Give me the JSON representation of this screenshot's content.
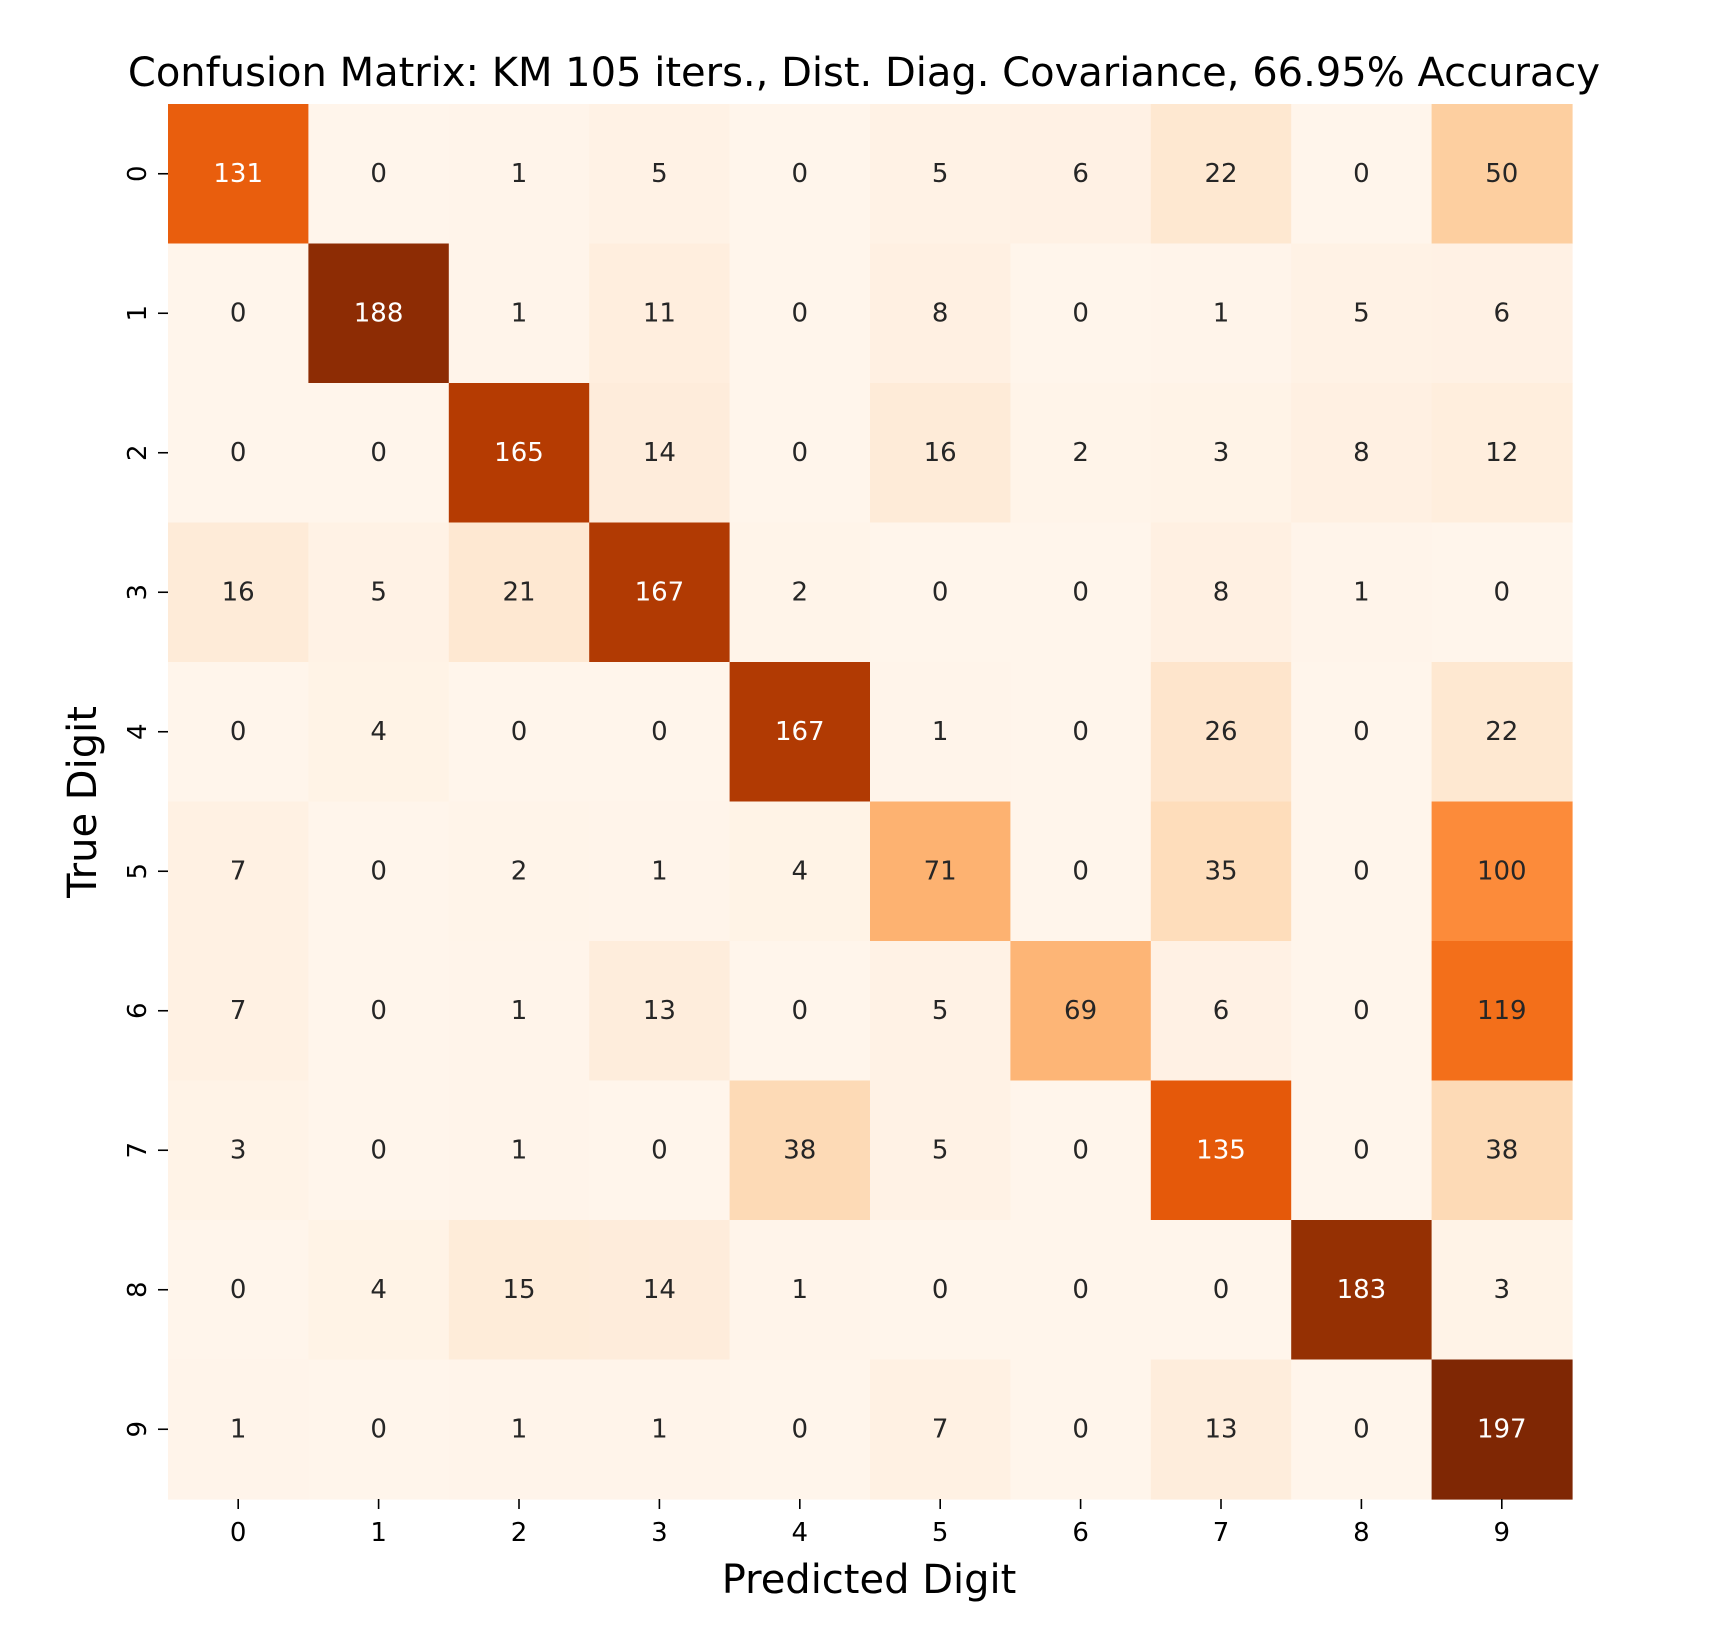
{
  "chart_data": {
    "type": "heatmap",
    "title": "Confusion Matrix: KM 105 iters., Dist. Diag. Covariance, 66.95% Accuracy",
    "xlabel": "Predicted Digit",
    "ylabel": "True Digit",
    "x_categories": [
      "0",
      "1",
      "2",
      "3",
      "4",
      "5",
      "6",
      "7",
      "8",
      "9"
    ],
    "y_categories": [
      "0",
      "1",
      "2",
      "3",
      "4",
      "5",
      "6",
      "7",
      "8",
      "9"
    ],
    "values": [
      [
        131,
        0,
        1,
        5,
        0,
        5,
        6,
        22,
        0,
        50
      ],
      [
        0,
        188,
        1,
        11,
        0,
        8,
        0,
        1,
        5,
        6
      ],
      [
        0,
        0,
        165,
        14,
        0,
        16,
        2,
        3,
        8,
        12
      ],
      [
        16,
        5,
        21,
        167,
        2,
        0,
        0,
        8,
        1,
        0
      ],
      [
        0,
        4,
        0,
        0,
        167,
        1,
        0,
        26,
        0,
        22
      ],
      [
        7,
        0,
        2,
        1,
        4,
        71,
        0,
        35,
        0,
        100
      ],
      [
        7,
        0,
        1,
        13,
        0,
        5,
        69,
        6,
        0,
        119
      ],
      [
        3,
        0,
        1,
        0,
        38,
        5,
        0,
        135,
        0,
        38
      ],
      [
        0,
        4,
        15,
        14,
        1,
        0,
        0,
        0,
        183,
        3
      ],
      [
        1,
        0,
        1,
        1,
        0,
        7,
        0,
        13,
        0,
        197
      ]
    ],
    "vmin": 0,
    "vmax": 197,
    "colormap": "Oranges",
    "colormap_stops": [
      "#fff5eb",
      "#fee6ce",
      "#fdd0a2",
      "#fdae6b",
      "#fd8d3c",
      "#f16913",
      "#d94801",
      "#a63603",
      "#7f2704"
    ],
    "annotation_dark_color": "#262626",
    "annotation_light_color": "#ffffff",
    "grid": false,
    "colorbar": false
  }
}
